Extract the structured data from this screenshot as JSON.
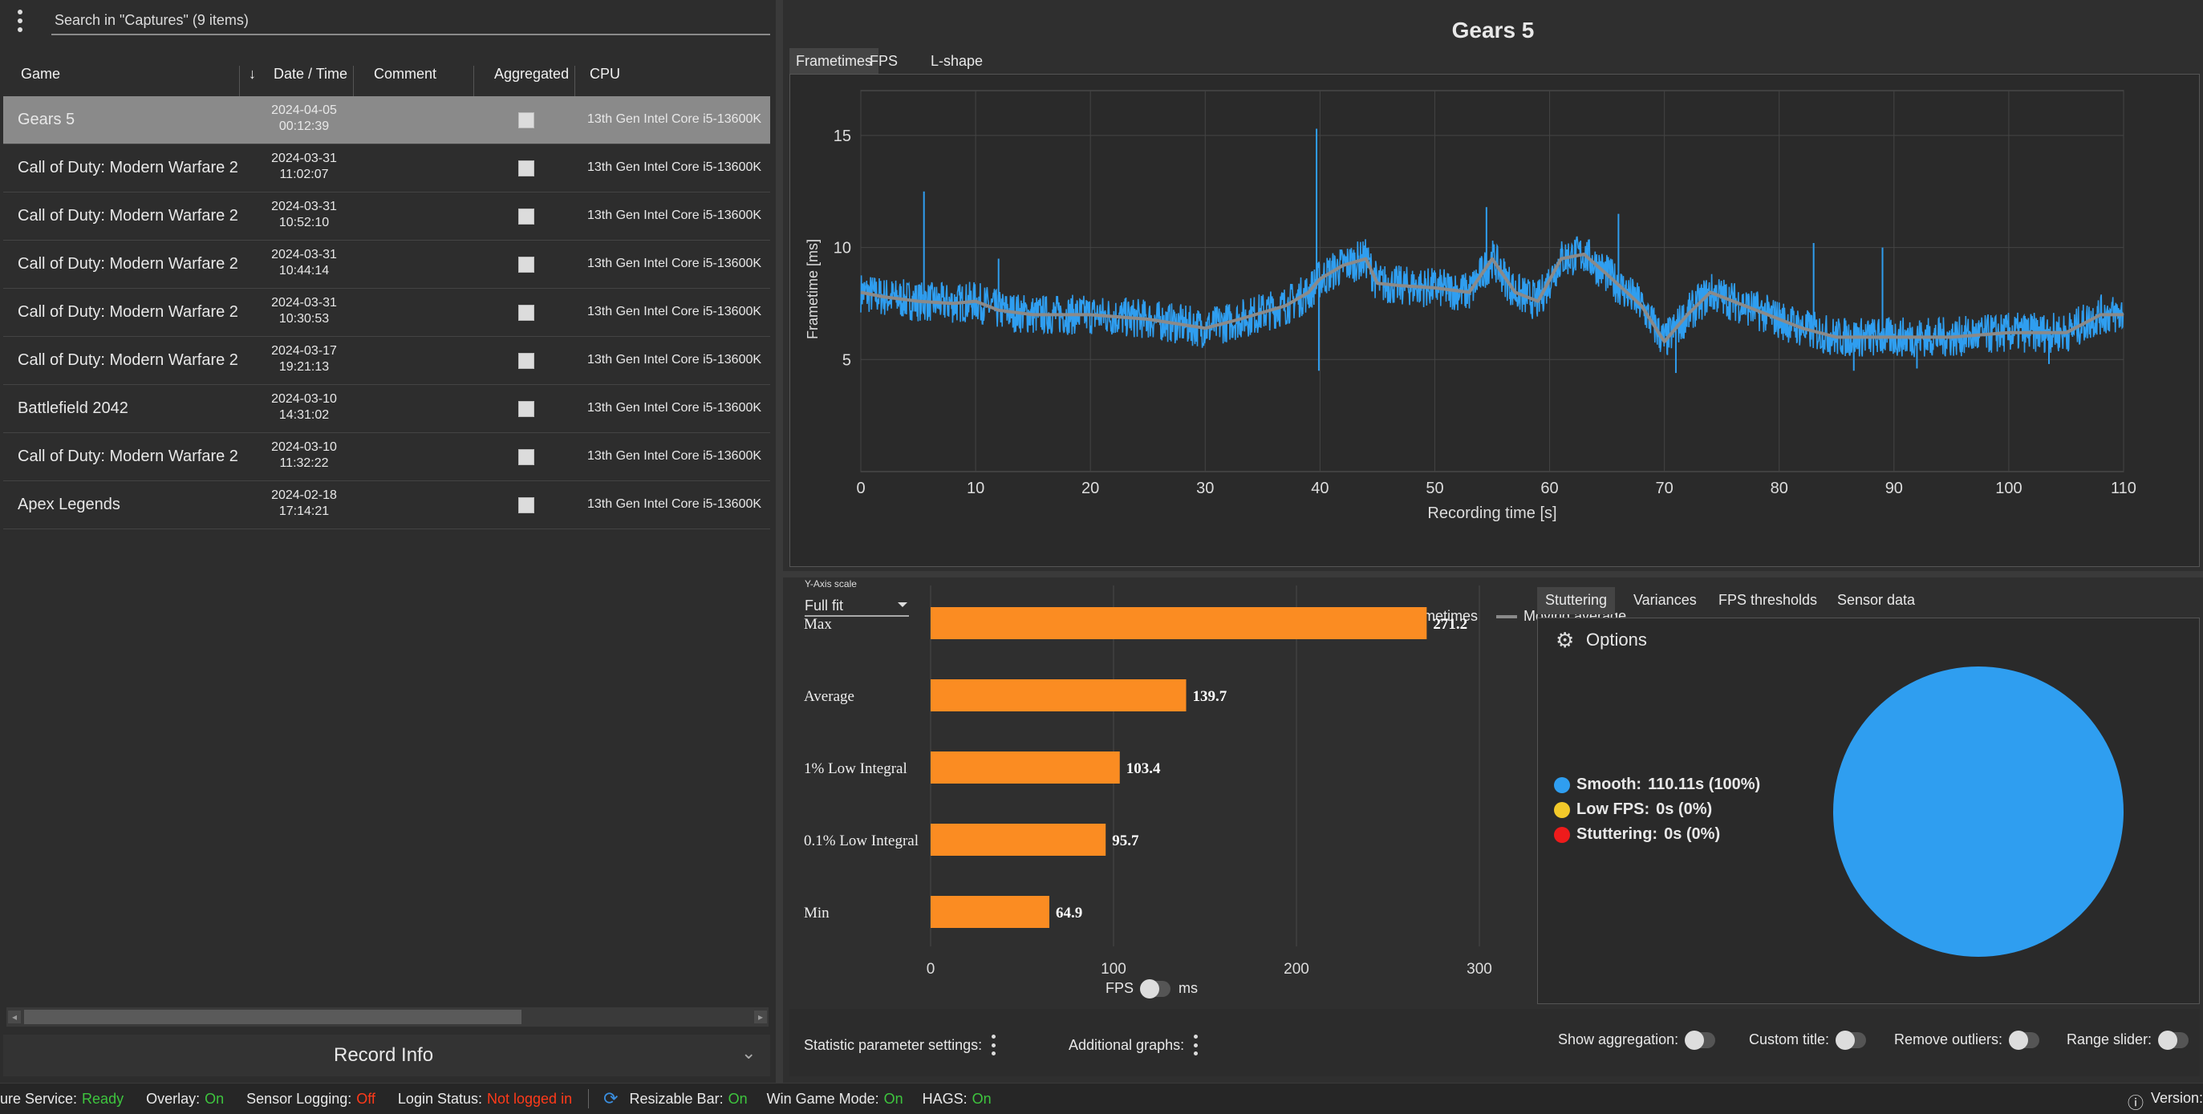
{
  "search": {
    "placeholder": "Search in \"Captures\" (9 items)"
  },
  "table": {
    "headers": {
      "game": "Game",
      "datetime": "Date / Time",
      "comment": "Comment",
      "aggregated": "Aggregated",
      "cpu": "CPU"
    },
    "rows": [
      {
        "game": "Gears 5",
        "date": "2024-04-05",
        "time": "00:12:39",
        "cpu": "13th Gen Intel Core i5-13600K"
      },
      {
        "game": "Call of Duty: Modern Warfare 2",
        "date": "2024-03-31",
        "time": "11:02:07",
        "cpu": "13th Gen Intel Core i5-13600K"
      },
      {
        "game": "Call of Duty: Modern Warfare 2",
        "date": "2024-03-31",
        "time": "10:52:10",
        "cpu": "13th Gen Intel Core i5-13600K"
      },
      {
        "game": "Call of Duty: Modern Warfare 2",
        "date": "2024-03-31",
        "time": "10:44:14",
        "cpu": "13th Gen Intel Core i5-13600K"
      },
      {
        "game": "Call of Duty: Modern Warfare 2",
        "date": "2024-03-31",
        "time": "10:30:53",
        "cpu": "13th Gen Intel Core i5-13600K"
      },
      {
        "game": "Call of Duty: Modern Warfare 2",
        "date": "2024-03-17",
        "time": "19:21:13",
        "cpu": "13th Gen Intel Core i5-13600K"
      },
      {
        "game": "Battlefield 2042",
        "date": "2024-03-10",
        "time": "14:31:02",
        "cpu": "13th Gen Intel Core i5-13600K"
      },
      {
        "game": "Call of Duty: Modern Warfare 2",
        "date": "2024-03-10",
        "time": "11:32:22",
        "cpu": "13th Gen Intel Core i5-13600K"
      },
      {
        "game": "Apex Legends",
        "date": "2024-02-18",
        "time": "17:14:21",
        "cpu": "13th Gen Intel Core i5-13600K"
      }
    ]
  },
  "record_info": {
    "label": "Record Info"
  },
  "main": {
    "title": "Gears 5",
    "tabs": [
      "Frametimes",
      "FPS",
      "L-shape"
    ],
    "yaxis_scale": {
      "label": "Y-Axis scale",
      "value": "Full fit"
    },
    "stutter_tabs": [
      "Stuttering",
      "Variances",
      "FPS thresholds",
      "Sensor data"
    ],
    "options_label": "Options",
    "fps_label": "FPS",
    "ms_label": "ms"
  },
  "pie_legend": [
    {
      "label": "Smooth:",
      "value": "110.11s (100%)",
      "color": "#2f9ef0"
    },
    {
      "label": "Low FPS:",
      "value": "0s (0%)",
      "color": "#f2c92a"
    },
    {
      "label": "Stuttering:",
      "value": "0s (0%)",
      "color": "#ee1b1b"
    }
  ],
  "bottom_bar": {
    "stat_settings": "Statistic parameter settings:",
    "additional_graphs": "Additional graphs:",
    "show_aggregation": "Show aggregation:",
    "custom_title": "Custom title:",
    "remove_outliers": "Remove outliers:",
    "range_slider": "Range slider:"
  },
  "status": {
    "service_label": "ure Service:",
    "service_value": "Ready",
    "overlay_label": "Overlay:",
    "overlay_value": "On",
    "sensor_label": "Sensor Logging:",
    "sensor_value": "Off",
    "login_label": "Login Status:",
    "login_value": "Not logged in",
    "rebar_label": "Resizable Bar:",
    "rebar_value": "On",
    "gamemode_label": "Win Game Mode:",
    "gamemode_value": "On",
    "hags_label": "HAGS:",
    "hags_value": "On",
    "version_label": "Version:"
  },
  "chart_data": [
    {
      "type": "line",
      "title": "",
      "xlabel": "Recording time [s]",
      "ylabel": "Frametime [ms]",
      "xlim": [
        0,
        110
      ],
      "ylim": [
        0,
        17
      ],
      "xticks": [
        0,
        10,
        20,
        30,
        40,
        50,
        60,
        70,
        80,
        90,
        100,
        110
      ],
      "yticks": [
        5,
        10,
        15
      ],
      "grid": true,
      "legend": "bottom-center",
      "series": [
        {
          "name": "Frametimes",
          "color": "#2f9ef0",
          "x": [
            0,
            2,
            5,
            8,
            10,
            12,
            15,
            20,
            25,
            30,
            33,
            37,
            39,
            40,
            42,
            44,
            45,
            47,
            50,
            53,
            55,
            57,
            59,
            61,
            63,
            65,
            68,
            70,
            72,
            74,
            78,
            82,
            85,
            90,
            95,
            100,
            105,
            108,
            110
          ],
          "y": [
            8.0,
            7.8,
            7.6,
            7.5,
            7.6,
            7.2,
            7.0,
            7.0,
            6.8,
            6.4,
            6.8,
            7.4,
            8.0,
            8.6,
            9.2,
            9.5,
            8.4,
            8.3,
            8.2,
            8.0,
            9.5,
            8.0,
            7.6,
            9.5,
            9.7,
            8.8,
            7.4,
            5.8,
            7.0,
            8.0,
            7.2,
            6.4,
            6.0,
            6.0,
            6.0,
            6.2,
            6.2,
            7.0,
            7.0
          ]
        },
        {
          "name": "Moving average",
          "color": "#8a8a8a",
          "x": [
            0,
            2,
            5,
            8,
            10,
            12,
            15,
            20,
            25,
            30,
            33,
            37,
            39,
            40,
            42,
            44,
            45,
            47,
            50,
            53,
            55,
            57,
            59,
            61,
            63,
            65,
            68,
            70,
            72,
            74,
            78,
            82,
            85,
            90,
            95,
            100,
            105,
            108,
            110
          ],
          "y": [
            8.0,
            7.8,
            7.6,
            7.5,
            7.6,
            7.2,
            7.0,
            7.0,
            6.8,
            6.4,
            6.8,
            7.4,
            8.0,
            8.6,
            9.2,
            9.5,
            8.4,
            8.3,
            8.2,
            8.0,
            9.5,
            8.0,
            7.6,
            9.5,
            9.7,
            8.8,
            7.4,
            5.8,
            7.0,
            8.0,
            7.2,
            6.4,
            6.0,
            6.0,
            6.0,
            6.2,
            6.2,
            7.0,
            7.0
          ]
        }
      ],
      "spikes": [
        {
          "x": 5.5,
          "y": 12.5
        },
        {
          "x": 39.7,
          "y": 15.3
        },
        {
          "x": 39.9,
          "y": 4.5
        },
        {
          "x": 54.5,
          "y": 11.8
        },
        {
          "x": 66,
          "y": 11.5
        },
        {
          "x": 71,
          "y": 4.4
        },
        {
          "x": 83,
          "y": 10.2
        },
        {
          "x": 86.5,
          "y": 4.5
        },
        {
          "x": 89,
          "y": 10.0
        },
        {
          "x": 92,
          "y": 4.6
        },
        {
          "x": 103.5,
          "y": 4.8
        },
        {
          "x": 12,
          "y": 9.5
        }
      ]
    },
    {
      "type": "bar",
      "orientation": "horizontal",
      "title": "",
      "categories": [
        "Max",
        "Average",
        "1% Low Integral",
        "0.1% Low Integral",
        "Min"
      ],
      "values": [
        271.2,
        139.7,
        103.4,
        95.7,
        64.9
      ],
      "xlim": [
        0,
        300
      ],
      "xticks": [
        0,
        100,
        200,
        300
      ],
      "color": "#fb8c22",
      "grid": true
    },
    {
      "type": "pie",
      "categories": [
        "Smooth",
        "Low FPS",
        "Stuttering"
      ],
      "values": [
        100,
        0,
        0
      ],
      "colors": [
        "#2f9ef0",
        "#f2c92a",
        "#ee1b1b"
      ]
    }
  ]
}
